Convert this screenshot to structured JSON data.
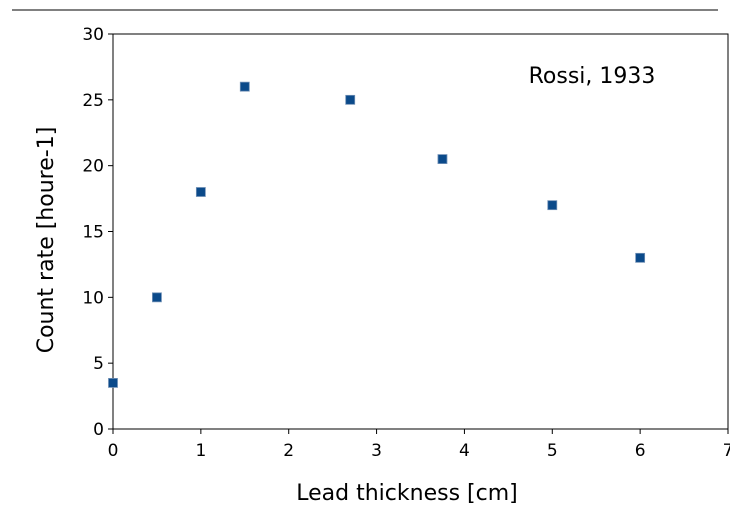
{
  "chart_data": {
    "type": "scatter",
    "title": "",
    "xlabel": "Lead thickness [cm]",
    "ylabel": "Count rate [houre-1]",
    "xlim": [
      0,
      7
    ],
    "ylim": [
      0,
      30
    ],
    "xticks": [
      "0",
      "1",
      "2",
      "3",
      "4",
      "5",
      "6",
      "7"
    ],
    "yticks": [
      "0",
      "5",
      "10",
      "15",
      "20",
      "25",
      "30"
    ],
    "grid": false,
    "annotation": "Rossi, 1933",
    "marker": "square",
    "marker_color": "#0b4a8a",
    "points": [
      {
        "x": 0,
        "y": 3.5
      },
      {
        "x": 0.5,
        "y": 10
      },
      {
        "x": 1,
        "y": 18
      },
      {
        "x": 1.5,
        "y": 26
      },
      {
        "x": 2.7,
        "y": 25
      },
      {
        "x": 3.75,
        "y": 20.5
      },
      {
        "x": 5,
        "y": 17
      },
      {
        "x": 6,
        "y": 13
      }
    ]
  }
}
